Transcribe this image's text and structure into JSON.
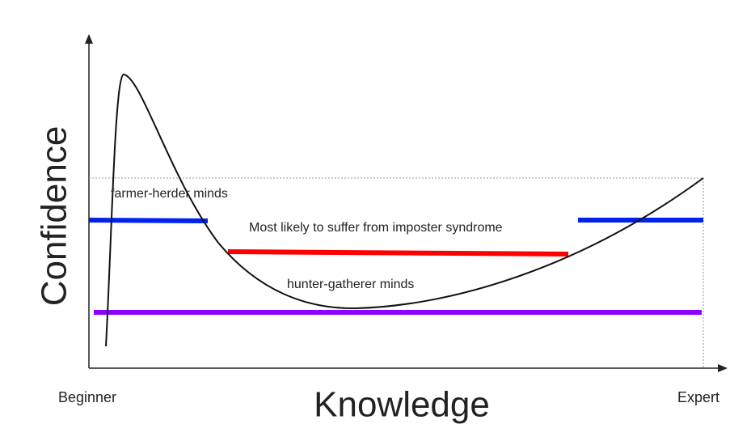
{
  "axes": {
    "y_label": "Confidence",
    "x_label": "Knowledge",
    "x_start": "Beginner",
    "x_end": "Expert"
  },
  "annotations": {
    "farmer_herder": "farmer-herder minds",
    "imposter": "Most likely to suffer from imposter syndrome",
    "hunter_gatherer": "hunter-gatherer minds"
  }
}
